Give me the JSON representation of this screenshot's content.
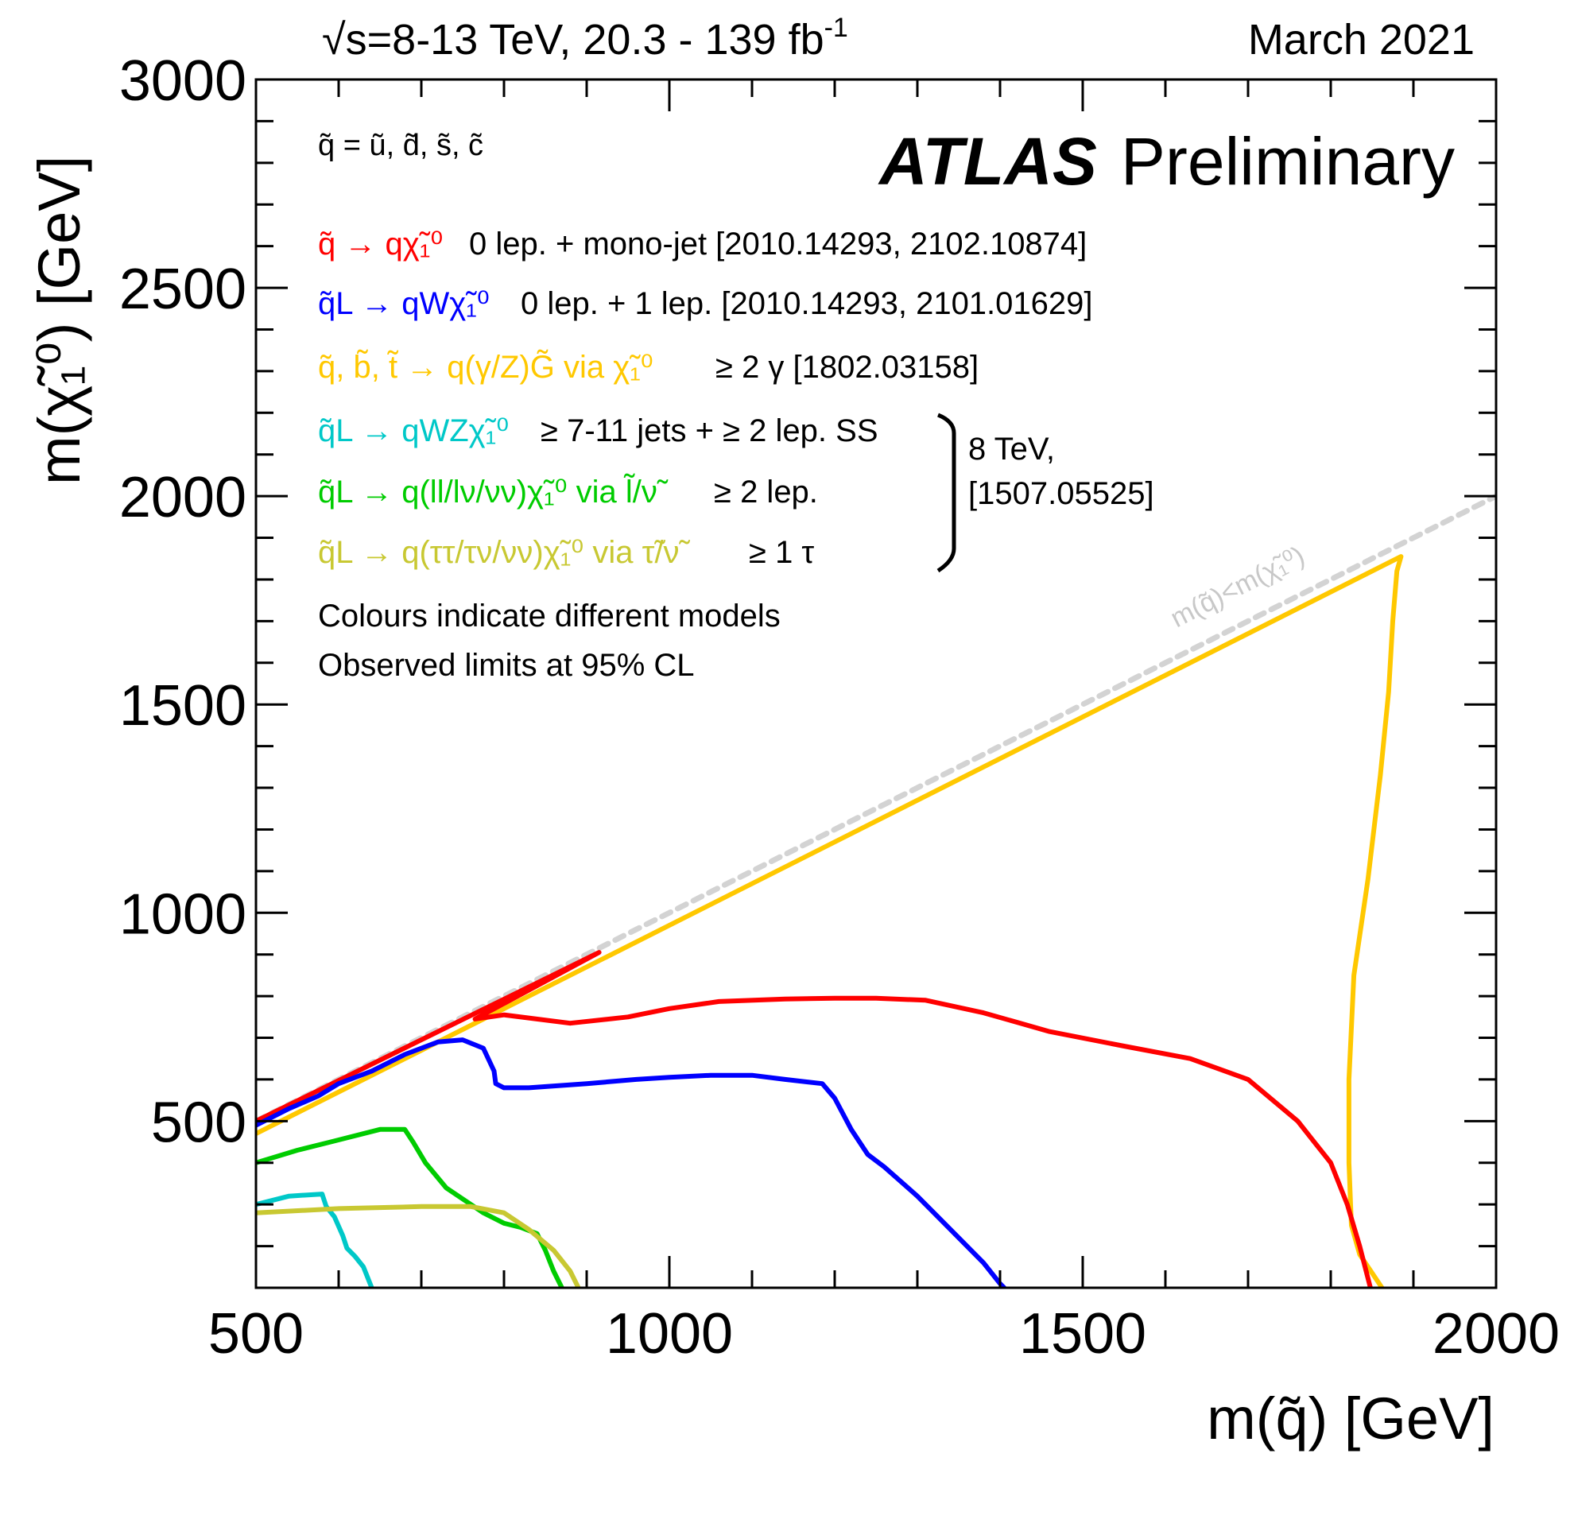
{
  "header": {
    "energy_text": "√s=8-13 TeV, 20.3 - 139 fb",
    "energy_sup": "-1",
    "date": "March 2021"
  },
  "atlas": {
    "bold": "ATLAS",
    "label": "Preliminary"
  },
  "squark_def": "q̃ = ũ, d̃, s̃, c̃",
  "legend": [
    {
      "process": "q̃ → qχ̃₁⁰",
      "analysis": "0 lep. + mono-jet [2010.14293, 2102.10874]",
      "color": "#ff0000"
    },
    {
      "process": "q̃L → qWχ̃₁⁰",
      "analysis": "0 lep. + 1 lep. [2010.14293, 2101.01629]",
      "color": "#0000ff"
    },
    {
      "process": "q̃, b̃, t̃ → q(γ/Z)G̃ via χ̃₁⁰",
      "analysis": "≥ 2 γ [1802.03158]",
      "color": "#ffc800"
    },
    {
      "process": "q̃L → qWZχ̃₁⁰",
      "analysis": "≥ 7-11 jets + ≥ 2 lep. SS",
      "color": "#00c8c8"
    },
    {
      "process": "q̃L → q(ll/lν/νν)χ̃₁⁰ via l̃/ν̃",
      "analysis": "≥ 2 lep.",
      "color": "#00cc00"
    },
    {
      "process": "q̃L → q(ττ/τν/νν)χ̃₁⁰ via τ̃/ν̃",
      "analysis": "≥ 1 τ",
      "color": "#c8c832"
    }
  ],
  "bracket_label": [
    "8 TeV,",
    "[1507.05525]"
  ],
  "notes": [
    "Colours indicate different models",
    "Observed limits at 95% CL"
  ],
  "diagonal_label": "m(q̃)<m(χ̃₁⁰)",
  "chart_data": {
    "type": "line",
    "xlabel": "m(q̃) [GeV]",
    "ylabel": "m(χ̃₁⁰) [GeV]",
    "xlim": [
      500,
      2000
    ],
    "ylim": [
      100,
      3000
    ],
    "xticks": [
      500,
      1000,
      1500,
      2000
    ],
    "yticks": [
      500,
      1000,
      1500,
      2000,
      2500,
      3000
    ],
    "grid": false,
    "legend_position": "top-left",
    "series": [
      {
        "color": "#d3d3d3",
        "style": "dotted",
        "x": [
          500,
          2000
        ],
        "y": [
          500,
          2000
        ]
      },
      {
        "color": "#ffc800",
        "x": [
          500,
          1885,
          1880,
          1875,
          1870,
          1860,
          1845,
          1828,
          1822,
          1822,
          1825,
          1835,
          1862
        ],
        "y": [
          470,
          1855,
          1820,
          1700,
          1530,
          1330,
          1080,
          850,
          600,
          400,
          250,
          180,
          100
        ]
      },
      {
        "color": "#ff0000",
        "x": [
          500,
          915,
          765,
          800,
          880,
          950,
          1000,
          1060,
          1140,
          1200,
          1250,
          1310,
          1380,
          1460,
          1550,
          1630,
          1700,
          1760,
          1800,
          1820,
          1835,
          1848
        ],
        "y": [
          500,
          905,
          745,
          755,
          735,
          750,
          770,
          787,
          793,
          795,
          795,
          790,
          760,
          715,
          680,
          650,
          600,
          500,
          400,
          300,
          200,
          100
        ]
      },
      {
        "color": "#0000ff",
        "x": [
          500,
          540,
          575,
          600,
          640,
          680,
          720,
          750,
          775,
          788,
          790,
          800,
          830,
          900,
          960,
          1000,
          1050,
          1100,
          1140,
          1185,
          1200,
          1220,
          1240,
          1260,
          1300,
          1350,
          1380,
          1400,
          1405
        ],
        "y": [
          490,
          530,
          560,
          590,
          620,
          660,
          690,
          695,
          675,
          620,
          590,
          580,
          580,
          590,
          600,
          605,
          610,
          610,
          600,
          590,
          555,
          480,
          420,
          390,
          320,
          220,
          160,
          110,
          100
        ]
      },
      {
        "color": "#00cc00",
        "x": [
          500,
          550,
          590,
          650,
          680,
          690,
          705,
          730,
          775,
          800,
          820,
          840,
          850,
          860,
          870
        ],
        "y": [
          400,
          430,
          450,
          480,
          480,
          450,
          400,
          340,
          280,
          255,
          245,
          230,
          190,
          140,
          100
        ]
      },
      {
        "color": "#00c8c8",
        "x": [
          500,
          540,
          580,
          585,
          595,
          605,
          610,
          620,
          630,
          635,
          640
        ],
        "y": [
          300,
          320,
          325,
          295,
          270,
          225,
          195,
          175,
          150,
          125,
          100
        ]
      },
      {
        "color": "#c8c832",
        "x": [
          500,
          600,
          700,
          760,
          800,
          830,
          860,
          880,
          890
        ],
        "y": [
          280,
          290,
          295,
          295,
          280,
          240,
          190,
          140,
          100
        ]
      }
    ]
  }
}
